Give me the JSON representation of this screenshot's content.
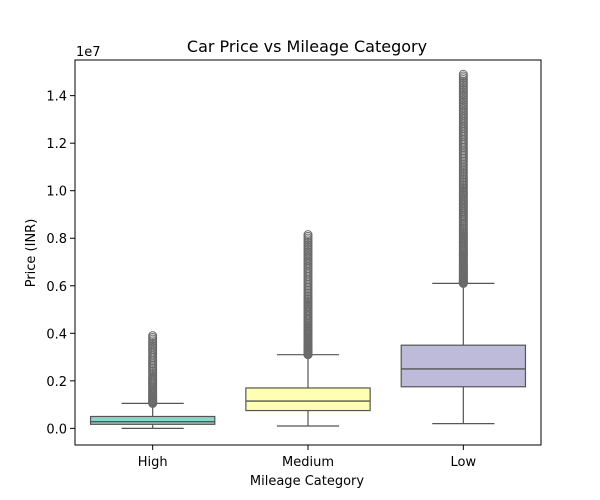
{
  "chart_data": {
    "type": "boxplot",
    "title": "Car Price vs Mileage Category",
    "xlabel": "Mileage Category",
    "ylabel": "Price (INR)",
    "y_multiplier_label": "1e7",
    "y_unit_scale": 10000000,
    "ylim": [
      -0.07,
      1.55
    ],
    "y_ticks": [
      0.0,
      0.2,
      0.4,
      0.6,
      0.8,
      1.0,
      1.2,
      1.4
    ],
    "y_tick_labels": [
      "0.0",
      "0.2",
      "0.4",
      "0.6",
      "0.8",
      "1.0",
      "1.2",
      "1.4"
    ],
    "grid": false,
    "legend": "none",
    "categories": [
      "High",
      "Medium",
      "Low"
    ],
    "boxes": [
      {
        "category": "High",
        "color": "#8dd3c7",
        "whisker_low": 0.0,
        "q1": 0.017,
        "median": 0.028,
        "q3": 0.05,
        "whisker_high": 0.105,
        "outlier_range": [
          0.105,
          0.39
        ]
      },
      {
        "category": "Medium",
        "color": "#ffffb3",
        "whisker_low": 0.01,
        "q1": 0.075,
        "median": 0.115,
        "q3": 0.17,
        "whisker_high": 0.31,
        "outlier_range": [
          0.31,
          0.815
        ]
      },
      {
        "category": "Low",
        "color": "#bebada",
        "whisker_low": 0.02,
        "q1": 0.175,
        "median": 0.25,
        "q3": 0.35,
        "whisker_high": 0.61,
        "outlier_range": [
          0.61,
          1.49
        ]
      }
    ]
  }
}
